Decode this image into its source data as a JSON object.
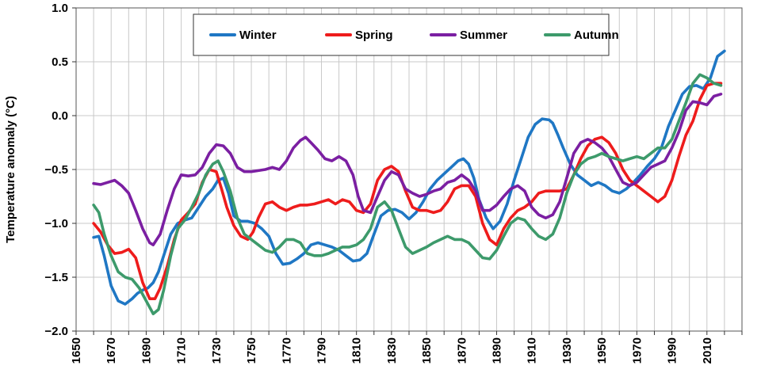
{
  "chart_data": {
    "type": "line",
    "title": "",
    "xlabel": "",
    "ylabel": "Temperature anomaly (°C)",
    "xlim": [
      1650,
      2030
    ],
    "ylim": [
      -2.0,
      1.0
    ],
    "x_ticks": [
      1650,
      1660,
      1670,
      1680,
      1690,
      1700,
      1710,
      1720,
      1730,
      1740,
      1750,
      1760,
      1770,
      1780,
      1790,
      1800,
      1810,
      1820,
      1830,
      1840,
      1850,
      1860,
      1870,
      1880,
      1890,
      1900,
      1910,
      1920,
      1930,
      1940,
      1950,
      1960,
      1970,
      1980,
      1990,
      2000,
      2010,
      2020,
      2030
    ],
    "x_tick_labels": [
      "1650",
      "1670",
      "1690",
      "1710",
      "1730",
      "1750",
      "1770",
      "1790",
      "1810",
      "1830",
      "1850",
      "1870",
      "1890",
      "1910",
      "1930",
      "1950",
      "1970",
      "1990",
      "2010"
    ],
    "y_ticks": [
      1.0,
      0.5,
      0.0,
      -0.5,
      -1.0,
      -1.5,
      -2.0
    ],
    "y_tick_labels": [
      "1.0",
      "0.5",
      "0.0",
      "−0.5",
      "−1.0",
      "−1.5",
      "−2.0"
    ],
    "grid": true,
    "legend_position": "top-center",
    "series": [
      {
        "name": "Winter",
        "color": "#1f77c4",
        "x": [
          1660,
          1663,
          1666,
          1670,
          1674,
          1678,
          1682,
          1685,
          1688,
          1691,
          1694,
          1697,
          1700,
          1704,
          1708,
          1712,
          1716,
          1720,
          1724,
          1728,
          1731,
          1734,
          1737,
          1740,
          1744,
          1748,
          1752,
          1756,
          1760,
          1764,
          1768,
          1772,
          1776,
          1780,
          1784,
          1788,
          1792,
          1796,
          1800,
          1804,
          1808,
          1812,
          1816,
          1820,
          1824,
          1828,
          1832,
          1836,
          1840,
          1844,
          1848,
          1852,
          1856,
          1860,
          1864,
          1868,
          1871,
          1874,
          1877,
          1880,
          1884,
          1888,
          1892,
          1896,
          1900,
          1904,
          1908,
          1912,
          1916,
          1920,
          1922,
          1925,
          1928,
          1932,
          1936,
          1940,
          1944,
          1948,
          1952,
          1956,
          1960,
          1964,
          1968,
          1972,
          1976,
          1980,
          1984,
          1988,
          1992,
          1996,
          2000,
          2004,
          2008,
          2012,
          2016,
          2020
        ],
        "values": [
          -1.13,
          -1.12,
          -1.3,
          -1.58,
          -1.72,
          -1.75,
          -1.7,
          -1.65,
          -1.62,
          -1.6,
          -1.55,
          -1.45,
          -1.3,
          -1.1,
          -1.0,
          -0.97,
          -0.95,
          -0.85,
          -0.75,
          -0.68,
          -0.6,
          -0.58,
          -0.72,
          -0.93,
          -0.98,
          -0.98,
          -1.0,
          -1.05,
          -1.12,
          -1.28,
          -1.38,
          -1.37,
          -1.33,
          -1.28,
          -1.2,
          -1.18,
          -1.2,
          -1.22,
          -1.25,
          -1.3,
          -1.35,
          -1.34,
          -1.28,
          -1.1,
          -0.93,
          -0.88,
          -0.87,
          -0.9,
          -0.96,
          -0.9,
          -0.8,
          -0.68,
          -0.6,
          -0.54,
          -0.48,
          -0.42,
          -0.4,
          -0.45,
          -0.58,
          -0.78,
          -0.95,
          -1.05,
          -0.98,
          -0.82,
          -0.6,
          -0.4,
          -0.2,
          -0.08,
          -0.03,
          -0.04,
          -0.07,
          -0.18,
          -0.3,
          -0.45,
          -0.55,
          -0.6,
          -0.65,
          -0.62,
          -0.65,
          -0.7,
          -0.72,
          -0.68,
          -0.62,
          -0.55,
          -0.47,
          -0.4,
          -0.3,
          -0.1,
          0.05,
          0.2,
          0.27,
          0.28,
          0.25,
          0.35,
          0.55,
          0.6
        ]
      },
      {
        "name": "Spring",
        "color": "#ee1c1c",
        "x": [
          1660,
          1664,
          1668,
          1672,
          1676,
          1680,
          1684,
          1688,
          1692,
          1695,
          1698,
          1702,
          1706,
          1710,
          1714,
          1718,
          1722,
          1726,
          1730,
          1733,
          1736,
          1740,
          1744,
          1748,
          1751,
          1754,
          1758,
          1762,
          1766,
          1770,
          1774,
          1778,
          1782,
          1786,
          1790,
          1794,
          1798,
          1802,
          1806,
          1810,
          1814,
          1818,
          1822,
          1826,
          1830,
          1834,
          1838,
          1842,
          1846,
          1850,
          1854,
          1858,
          1862,
          1866,
          1870,
          1874,
          1878,
          1882,
          1886,
          1890,
          1894,
          1898,
          1902,
          1906,
          1910,
          1914,
          1918,
          1922,
          1926,
          1930,
          1934,
          1938,
          1942,
          1946,
          1950,
          1954,
          1958,
          1962,
          1966,
          1970,
          1974,
          1978,
          1982,
          1986,
          1990,
          1994,
          1998,
          2002,
          2006,
          2010,
          2014,
          2018
        ],
        "values": [
          -1.0,
          -1.08,
          -1.2,
          -1.28,
          -1.27,
          -1.24,
          -1.32,
          -1.55,
          -1.7,
          -1.7,
          -1.6,
          -1.4,
          -1.15,
          -0.97,
          -0.9,
          -0.82,
          -0.62,
          -0.5,
          -0.52,
          -0.68,
          -0.85,
          -1.02,
          -1.12,
          -1.15,
          -1.08,
          -0.95,
          -0.82,
          -0.8,
          -0.85,
          -0.88,
          -0.85,
          -0.83,
          -0.83,
          -0.82,
          -0.8,
          -0.78,
          -0.82,
          -0.78,
          -0.8,
          -0.88,
          -0.9,
          -0.82,
          -0.6,
          -0.5,
          -0.47,
          -0.52,
          -0.7,
          -0.85,
          -0.88,
          -0.88,
          -0.9,
          -0.88,
          -0.8,
          -0.68,
          -0.65,
          -0.65,
          -0.75,
          -1.0,
          -1.15,
          -1.2,
          -1.05,
          -0.95,
          -0.88,
          -0.85,
          -0.8,
          -0.72,
          -0.7,
          -0.7,
          -0.7,
          -0.68,
          -0.55,
          -0.4,
          -0.28,
          -0.22,
          -0.2,
          -0.25,
          -0.35,
          -0.5,
          -0.6,
          -0.65,
          -0.7,
          -0.75,
          -0.8,
          -0.75,
          -0.6,
          -0.38,
          -0.18,
          -0.05,
          0.15,
          0.28,
          0.3,
          0.3
        ]
      },
      {
        "name": "Summer",
        "color": "#7b1fa2",
        "x": [
          1660,
          1664,
          1668,
          1672,
          1676,
          1680,
          1684,
          1688,
          1692,
          1694,
          1698,
          1702,
          1706,
          1710,
          1714,
          1718,
          1722,
          1726,
          1730,
          1734,
          1738,
          1742,
          1746,
          1750,
          1754,
          1758,
          1762,
          1766,
          1770,
          1774,
          1778,
          1781,
          1784,
          1788,
          1792,
          1796,
          1800,
          1804,
          1808,
          1811,
          1814,
          1818,
          1822,
          1826,
          1830,
          1834,
          1838,
          1842,
          1846,
          1850,
          1854,
          1858,
          1862,
          1866,
          1870,
          1874,
          1878,
          1882,
          1886,
          1890,
          1894,
          1898,
          1902,
          1906,
          1910,
          1914,
          1918,
          1922,
          1926,
          1930,
          1934,
          1938,
          1942,
          1946,
          1950,
          1954,
          1958,
          1962,
          1966,
          1970,
          1974,
          1978,
          1982,
          1986,
          1990,
          1994,
          1998,
          2002,
          2006,
          2010,
          2014,
          2018
        ],
        "values": [
          -0.63,
          -0.64,
          -0.62,
          -0.6,
          -0.65,
          -0.72,
          -0.88,
          -1.05,
          -1.18,
          -1.2,
          -1.1,
          -0.88,
          -0.68,
          -0.55,
          -0.56,
          -0.55,
          -0.48,
          -0.35,
          -0.27,
          -0.28,
          -0.35,
          -0.48,
          -0.52,
          -0.52,
          -0.51,
          -0.5,
          -0.48,
          -0.5,
          -0.42,
          -0.3,
          -0.23,
          -0.2,
          -0.25,
          -0.32,
          -0.4,
          -0.42,
          -0.38,
          -0.42,
          -0.55,
          -0.75,
          -0.88,
          -0.9,
          -0.75,
          -0.6,
          -0.52,
          -0.55,
          -0.68,
          -0.72,
          -0.75,
          -0.73,
          -0.7,
          -0.68,
          -0.62,
          -0.6,
          -0.55,
          -0.6,
          -0.7,
          -0.88,
          -0.88,
          -0.83,
          -0.75,
          -0.68,
          -0.65,
          -0.7,
          -0.85,
          -0.92,
          -0.95,
          -0.92,
          -0.8,
          -0.58,
          -0.35,
          -0.25,
          -0.22,
          -0.25,
          -0.3,
          -0.38,
          -0.5,
          -0.62,
          -0.65,
          -0.62,
          -0.55,
          -0.48,
          -0.45,
          -0.42,
          -0.3,
          -0.15,
          0.05,
          0.13,
          0.12,
          0.1,
          0.18,
          0.2
        ]
      },
      {
        "name": "Autumn",
        "color": "#3d9a6b",
        "x": [
          1660,
          1663,
          1666,
          1670,
          1674,
          1678,
          1682,
          1686,
          1690,
          1694,
          1697,
          1700,
          1704,
          1708,
          1712,
          1716,
          1720,
          1724,
          1728,
          1731,
          1734,
          1738,
          1742,
          1746,
          1750,
          1754,
          1758,
          1762,
          1766,
          1770,
          1774,
          1778,
          1782,
          1786,
          1790,
          1794,
          1798,
          1802,
          1806,
          1810,
          1814,
          1818,
          1822,
          1826,
          1830,
          1834,
          1838,
          1842,
          1846,
          1850,
          1854,
          1858,
          1862,
          1866,
          1870,
          1874,
          1878,
          1882,
          1886,
          1890,
          1894,
          1898,
          1902,
          1906,
          1910,
          1914,
          1918,
          1922,
          1926,
          1930,
          1934,
          1938,
          1942,
          1946,
          1950,
          1954,
          1958,
          1962,
          1966,
          1970,
          1974,
          1978,
          1982,
          1986,
          1990,
          1994,
          1998,
          2002,
          2006,
          2010,
          2014,
          2018
        ],
        "values": [
          -0.83,
          -0.9,
          -1.1,
          -1.3,
          -1.45,
          -1.5,
          -1.52,
          -1.6,
          -1.72,
          -1.84,
          -1.8,
          -1.62,
          -1.3,
          -1.05,
          -0.97,
          -0.85,
          -0.72,
          -0.55,
          -0.45,
          -0.42,
          -0.52,
          -0.7,
          -0.95,
          -1.1,
          -1.15,
          -1.2,
          -1.25,
          -1.27,
          -1.22,
          -1.15,
          -1.15,
          -1.18,
          -1.28,
          -1.3,
          -1.3,
          -1.28,
          -1.25,
          -1.22,
          -1.22,
          -1.2,
          -1.15,
          -1.05,
          -0.85,
          -0.8,
          -0.88,
          -1.05,
          -1.22,
          -1.28,
          -1.25,
          -1.22,
          -1.18,
          -1.15,
          -1.12,
          -1.15,
          -1.15,
          -1.18,
          -1.25,
          -1.32,
          -1.33,
          -1.25,
          -1.12,
          -1.0,
          -0.95,
          -0.97,
          -1.05,
          -1.12,
          -1.15,
          -1.1,
          -0.95,
          -0.72,
          -0.55,
          -0.45,
          -0.4,
          -0.38,
          -0.35,
          -0.38,
          -0.4,
          -0.42,
          -0.4,
          -0.38,
          -0.4,
          -0.35,
          -0.3,
          -0.3,
          -0.22,
          -0.05,
          0.12,
          0.3,
          0.38,
          0.35,
          0.3,
          0.28
        ]
      }
    ]
  }
}
